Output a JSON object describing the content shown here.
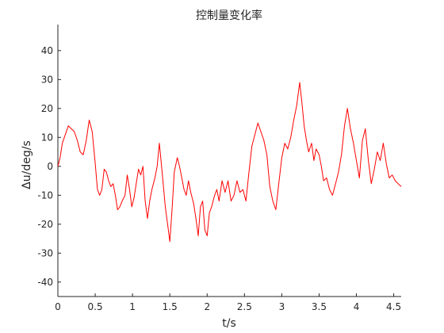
{
  "chart_data": {
    "type": "line",
    "title": "控制量变化率",
    "xlabel": "t/s",
    "ylabel": "Δu/deg/s",
    "xlim": [
      0,
      4.6
    ],
    "ylim": [
      -45,
      49
    ],
    "xticks": [
      0,
      0.5,
      1,
      1.5,
      2,
      2.5,
      3,
      3.5,
      4,
      4.5
    ],
    "xtick_labels": [
      "0",
      "0.5",
      "1",
      "1.5",
      "2",
      "2.5",
      "3",
      "3.5",
      "4",
      "4.5"
    ],
    "yticks": [
      -40,
      -30,
      -20,
      -10,
      0,
      10,
      20,
      30,
      40
    ],
    "ytick_labels": [
      "-40",
      "-30",
      "-20",
      "-10",
      "0",
      "10",
      "20",
      "30",
      "40"
    ],
    "grid": false,
    "series": [
      {
        "color": "#ff0000",
        "x": [
          0,
          0.03,
          0.06,
          0.1,
          0.14,
          0.18,
          0.22,
          0.26,
          0.3,
          0.34,
          0.38,
          0.42,
          0.46,
          0.5,
          0.53,
          0.56,
          0.59,
          0.62,
          0.65,
          0.68,
          0.71,
          0.74,
          0.77,
          0.8,
          0.83,
          0.86,
          0.9,
          0.93,
          0.96,
          0.99,
          1.02,
          1.05,
          1.08,
          1.11,
          1.14,
          1.17,
          1.2,
          1.23,
          1.26,
          1.3,
          1.33,
          1.36,
          1.4,
          1.44,
          1.47,
          1.5,
          1.53,
          1.56,
          1.6,
          1.63,
          1.66,
          1.69,
          1.72,
          1.75,
          1.78,
          1.82,
          1.85,
          1.88,
          1.91,
          1.94,
          1.97,
          2.0,
          2.03,
          2.06,
          2.1,
          2.13,
          2.16,
          2.2,
          2.24,
          2.28,
          2.32,
          2.36,
          2.4,
          2.44,
          2.48,
          2.52,
          2.56,
          2.6,
          2.64,
          2.68,
          2.72,
          2.76,
          2.8,
          2.84,
          2.88,
          2.92,
          2.96,
          3.0,
          3.04,
          3.08,
          3.12,
          3.16,
          3.2,
          3.24,
          3.27,
          3.3,
          3.33,
          3.36,
          3.4,
          3.43,
          3.46,
          3.5,
          3.53,
          3.56,
          3.6,
          3.64,
          3.68,
          3.72,
          3.76,
          3.8,
          3.84,
          3.88,
          3.92,
          3.96,
          4.0,
          4.04,
          4.08,
          4.12,
          4.16,
          4.2,
          4.24,
          4.28,
          4.32,
          4.36,
          4.4,
          4.44,
          4.48,
          4.52,
          4.56,
          4.6
        ],
        "y": [
          0,
          3,
          8,
          11,
          14,
          13,
          12,
          9,
          5,
          4,
          9,
          16,
          12,
          1,
          -8,
          -10,
          -8,
          -1,
          -2,
          -5,
          -7,
          -6,
          -10,
          -15,
          -14,
          -12,
          -10,
          -3,
          -8,
          -14,
          -11,
          -6,
          -1,
          -3,
          0,
          -12,
          -18,
          -12,
          -8,
          -4,
          0,
          8,
          -3,
          -14,
          -20,
          -26,
          -15,
          -2,
          3,
          0,
          -4,
          -8,
          -10,
          -5,
          -9,
          -13,
          -18,
          -24,
          -14,
          -12,
          -22,
          -24,
          -16,
          -14,
          -10,
          -8,
          -12,
          -5,
          -9,
          -5,
          -12,
          -10,
          -5,
          -9,
          -8,
          -12,
          -2,
          7,
          11,
          15,
          12,
          9,
          4,
          -7,
          -12,
          -15,
          -6,
          3,
          8,
          6,
          10,
          16,
          21,
          29,
          22,
          14,
          9,
          5,
          8,
          2,
          6,
          4,
          0,
          -5,
          -4,
          -8,
          -10,
          -6,
          -2,
          4,
          14,
          20,
          13,
          8,
          2,
          -4,
          9,
          13,
          2,
          -6,
          -1,
          5,
          2,
          8,
          1,
          -4,
          -3,
          -5,
          -6,
          -7
        ],
        "style": "solid"
      }
    ]
  }
}
